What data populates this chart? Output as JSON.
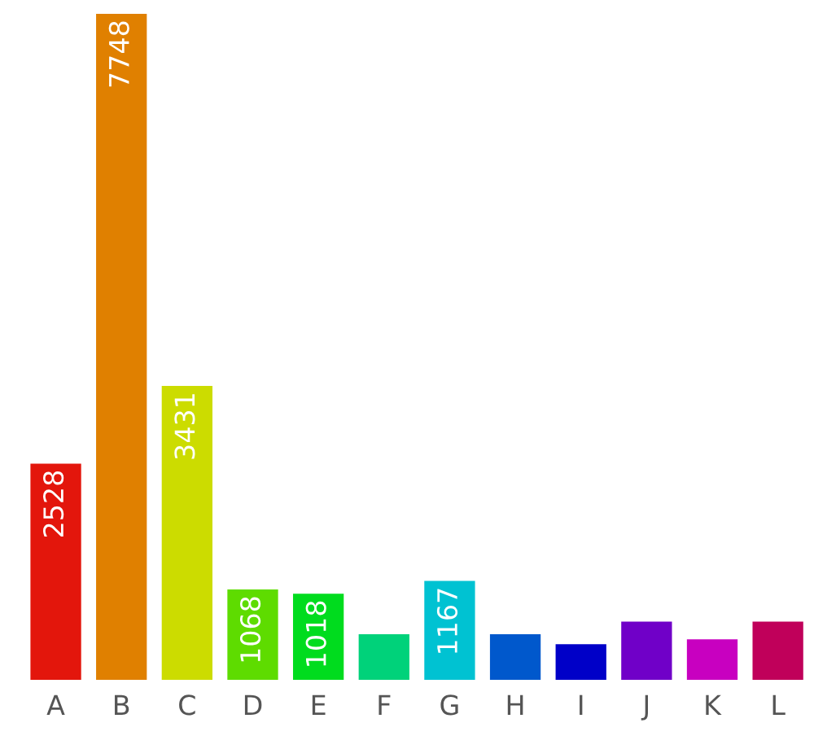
{
  "chart_data": {
    "type": "bar",
    "categories": [
      "A",
      "B",
      "C",
      "D",
      "E",
      "F",
      "G",
      "H",
      "I",
      "J",
      "K",
      "L"
    ],
    "values": [
      2528,
      7748,
      3431,
      1068,
      1018,
      548,
      1167,
      548,
      433,
      696,
      489,
      696
    ],
    "colors": [
      "#e3160c",
      "#e08000",
      "#ccdc00",
      "#5edc00",
      "#00dc1e",
      "#00d27a",
      "#00c2d2",
      "#0058cc",
      "#0000c8",
      "#7000c8",
      "#c800c0",
      "#c0005a"
    ],
    "value_labels": [
      "2528",
      "7748",
      "3431",
      "1068",
      "1018",
      null,
      "1167",
      null,
      null,
      null,
      null,
      null
    ],
    "grid": false,
    "legend": false
  }
}
